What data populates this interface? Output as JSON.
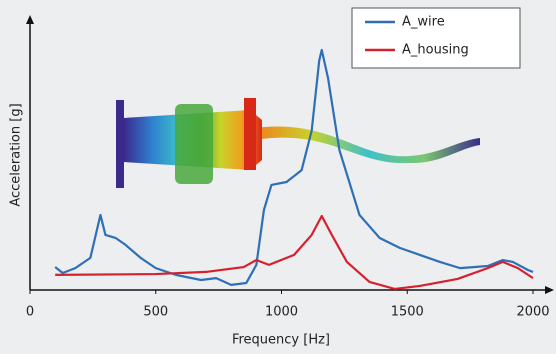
{
  "chart_data": {
    "type": "line",
    "x_label": "Frequency [Hz]",
    "y_label": "Acceleration [g]",
    "xlim": [
      0,
      2000
    ],
    "xticks": [
      0,
      500,
      1000,
      1500,
      2000
    ],
    "ylim": [
      0,
      100
    ],
    "legend": "top-right",
    "series": [
      {
        "name": "A_wire",
        "color": "#2f6fb6",
        "x": [
          100,
          130,
          180,
          240,
          280,
          300,
          340,
          380,
          440,
          500,
          580,
          680,
          740,
          800,
          860,
          900,
          930,
          960,
          1020,
          1080,
          1120,
          1150,
          1160,
          1185,
          1230,
          1310,
          1390,
          1470,
          1550,
          1630,
          1710,
          1820,
          1880,
          1920,
          1980,
          2000
        ],
        "values": [
          8.5,
          6.3,
          8.1,
          11.9,
          27.8,
          20.4,
          19.3,
          16.7,
          11.9,
          8.1,
          5.6,
          3.7,
          4.4,
          1.9,
          2.6,
          9.3,
          29.6,
          38.9,
          40,
          44.4,
          59,
          85,
          88.9,
          78.5,
          51.9,
          27.8,
          19.3,
          15.6,
          13,
          10.4,
          8.1,
          8.9,
          11.1,
          10.4,
          7.4,
          6.7
        ]
      },
      {
        "name": "A_housing",
        "color": "#d7202e",
        "x": [
          100,
          500,
          700,
          850,
          900,
          950,
          1050,
          1120,
          1160,
          1200,
          1260,
          1350,
          1450,
          1550,
          1700,
          1820,
          1880,
          1940,
          2000
        ],
        "values": [
          5.6,
          5.9,
          6.7,
          8.5,
          11.1,
          9.3,
          13,
          20.4,
          27.4,
          20.4,
          10.4,
          3,
          0.4,
          1.5,
          4.1,
          8.1,
          10.4,
          8.1,
          4.4
        ]
      }
    ]
  }
}
